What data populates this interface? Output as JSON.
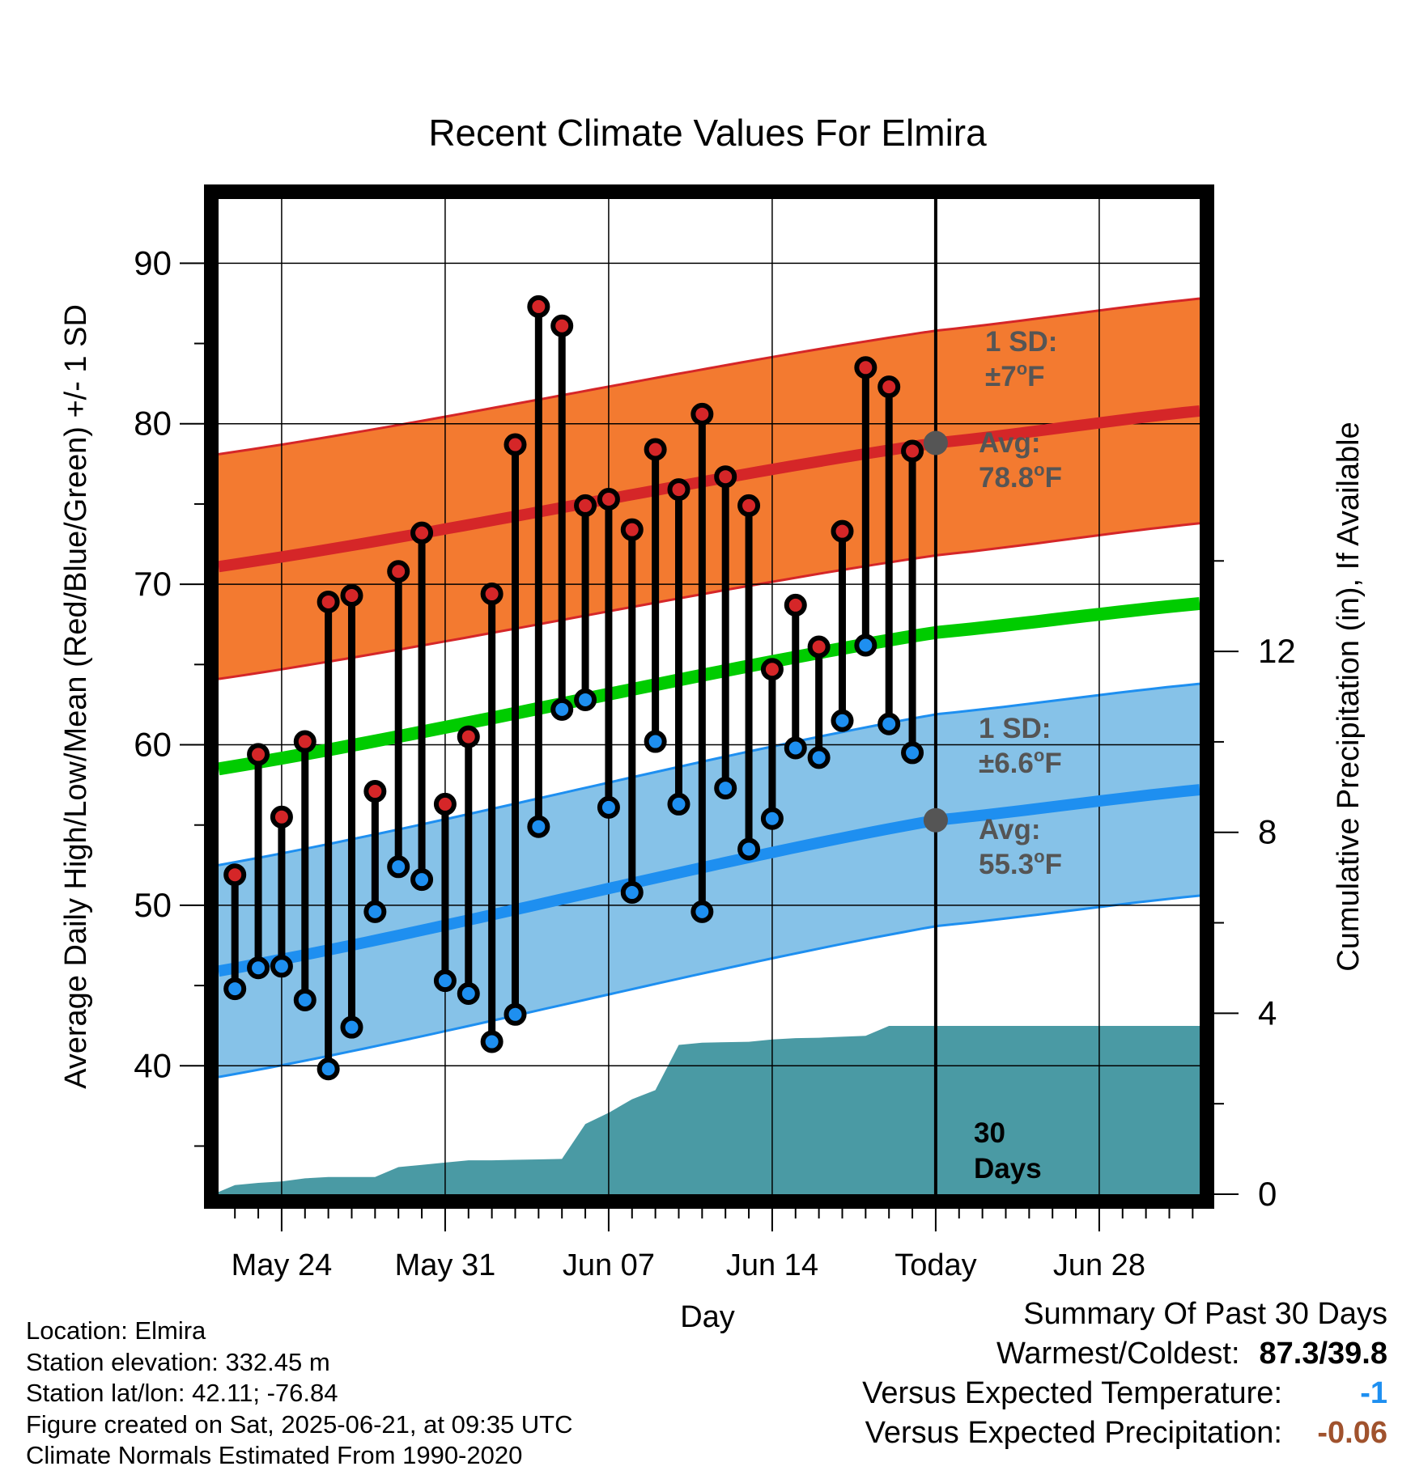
{
  "chart_data": {
    "type": "line",
    "title": "Recent Climate Values For Elmira",
    "xlabel": "Day",
    "ylabel": "Average Daily High/Low/Mean (Red/Blue/Green) +/- 1 SD",
    "y2label": "Cumulative Precipitation (in), If Available",
    "ylim": [
      32,
      94
    ],
    "y2lim": [
      0,
      22
    ],
    "xlim_day": [
      -0.7,
      41.3
    ],
    "x_ticks": [
      {
        "day": 2,
        "label": "May 24"
      },
      {
        "day": 9,
        "label": "May 31"
      },
      {
        "day": 16,
        "label": "Jun 07"
      },
      {
        "day": 23,
        "label": "Jun 14"
      },
      {
        "day": 30,
        "label": "Today"
      },
      {
        "day": 37,
        "label": "Jun 28"
      }
    ],
    "y_ticks": [
      40,
      50,
      60,
      70,
      80,
      90
    ],
    "y2_ticks": [
      0,
      4,
      8,
      12
    ],
    "x_units": "days since May 22",
    "normals": {
      "day": [
        -0.7,
        30,
        41.3
      ],
      "avg_high": [
        71.1,
        78.8,
        80.8
      ],
      "high_sd": 7,
      "avg_low": [
        45.9,
        55.3,
        57.2
      ],
      "low_sd": 6.6,
      "avg_mean": [
        58.5,
        67.0,
        68.8
      ]
    },
    "observed": {
      "high": [
        51.9,
        59.4,
        55.5,
        60.2,
        68.9,
        69.3,
        57.1,
        70.8,
        73.2,
        56.3,
        60.5,
        69.4,
        78.7,
        87.3,
        86.1,
        74.9,
        75.3,
        73.4,
        78.4,
        75.9,
        80.6,
        76.7,
        74.9,
        64.7,
        68.7,
        66.1,
        73.3,
        83.5,
        82.3,
        78.3
      ],
      "low": [
        44.8,
        46.1,
        46.2,
        44.1,
        39.8,
        42.4,
        49.6,
        52.4,
        51.6,
        45.3,
        44.5,
        41.5,
        43.2,
        54.9,
        62.2,
        62.8,
        56.1,
        50.8,
        60.2,
        56.3,
        49.6,
        57.3,
        53.5,
        55.4,
        59.8,
        59.2,
        61.5,
        66.2,
        61.3,
        59.5
      ]
    },
    "cumulative_precip": {
      "day": [
        -0.7,
        0,
        1,
        2,
        3,
        4,
        5,
        6,
        7,
        8,
        9,
        10,
        11,
        12,
        13,
        14,
        15,
        16,
        17,
        18,
        19,
        20,
        21,
        22,
        23,
        24,
        25,
        26,
        27,
        28,
        29,
        30,
        41.3
      ],
      "value": [
        0.05,
        0.2,
        0.25,
        0.28,
        0.35,
        0.38,
        0.38,
        0.38,
        0.6,
        0.65,
        0.7,
        0.75,
        0.75,
        0.76,
        0.77,
        0.78,
        1.55,
        1.8,
        2.1,
        2.3,
        3.3,
        3.35,
        3.36,
        3.37,
        3.42,
        3.45,
        3.46,
        3.48,
        3.5,
        3.72,
        3.72,
        3.72,
        3.72
      ]
    },
    "annotations": {
      "high_sd": {
        "line1": "1 SD:",
        "line2_pre": "±7",
        "line2_sup": "o",
        "line2_post": "F"
      },
      "high_avg": {
        "line1": "Avg:",
        "line2_pre": "78.8",
        "line2_sup": "o",
        "line2_post": "F"
      },
      "low_sd": {
        "line1": "1 SD:",
        "line2_pre": "±6.6",
        "line2_sup": "o",
        "line2_post": "F"
      },
      "low_avg": {
        "line1": "Avg:",
        "line2_pre": "55.3",
        "line2_sup": "o",
        "line2_post": "F"
      },
      "window": {
        "line1": "30",
        "line2": "Days"
      }
    },
    "colors": {
      "high_band": "#f37a30",
      "high_line": "#d52628",
      "low_band": "#86c2e8",
      "low_line": "#1e8ff0",
      "mean_line": "#00cc00",
      "precip": "#4a9aa4",
      "high_dot": "#d52628",
      "low_dot": "#1e8ff0",
      "annotation": "#555555"
    }
  },
  "footer": {
    "location": "Location: Elmira",
    "elevation": "Station elevation: 332.45 m",
    "latlon": "Station lat/lon: 42.11; -76.84",
    "created": "Figure created on Sat, 2025-06-21, at 09:35 UTC",
    "normals": "Climate Normals Estimated From 1990-2020"
  },
  "summary": {
    "heading": "Summary Of Past 30 Days",
    "warmest_label": "Warmest/Coldest:",
    "warmest_value": "87.3/39.8",
    "temp_label": "Versus Expected Temperature:",
    "temp_value": "-1",
    "temp_color": "#1e8ff0",
    "precip_label": "Versus Expected Precipitation:",
    "precip_value": "-0.06",
    "precip_color": "#a0522d"
  }
}
